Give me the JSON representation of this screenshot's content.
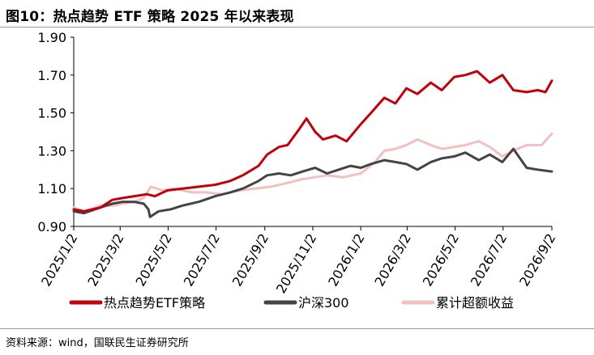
{
  "header": {
    "title": "图10：热点趋势 ETF 策略 2025 年以来表现"
  },
  "footer": {
    "source": "资料来源：wind，国联民生证券研究所"
  },
  "chart_data": {
    "type": "line",
    "title": "图10：热点趋势 ETF 策略 2025 年以来表现",
    "xlabel": "",
    "ylabel": "",
    "ylim": [
      0.9,
      1.9
    ],
    "yticks": [
      "0.90",
      "1.10",
      "1.30",
      "1.50",
      "1.70",
      "1.90"
    ],
    "xticks": [
      "2025/1/2",
      "2025/3/2",
      "2025/5/2",
      "2025/7/2",
      "2025/9/2",
      "2025/11/2",
      "2026/1/2",
      "2026/3/2",
      "2026/5/2",
      "2026/7/2",
      "2026/9/2"
    ],
    "xlim": [
      "2025/1/2",
      "2026/9/2"
    ],
    "grid": false,
    "legend_position": "bottom",
    "series": [
      {
        "name": "热点趋势ETF策略",
        "color": "#c0000a",
        "x": [
          "2025/1/2",
          "2025/1/15",
          "2025/2/5",
          "2025/2/20",
          "2025/3/5",
          "2025/3/20",
          "2025/4/5",
          "2025/4/15",
          "2025/5/1",
          "2025/5/20",
          "2025/6/10",
          "2025/7/1",
          "2025/7/20",
          "2025/8/5",
          "2025/8/25",
          "2025/9/5",
          "2025/9/20",
          "2025/10/1",
          "2025/10/15",
          "2025/10/25",
          "2025/11/5",
          "2025/11/15",
          "2025/12/1",
          "2025/12/15",
          "2026/1/2",
          "2026/1/15",
          "2026/2/1",
          "2026/2/15",
          "2026/3/1",
          "2026/3/15",
          "2026/4/1",
          "2026/4/15",
          "2026/5/1",
          "2026/5/15",
          "2026/5/30",
          "2026/6/15",
          "2026/7/1",
          "2026/7/15",
          "2026/8/1",
          "2026/8/15",
          "2026/8/25",
          "2026/9/2"
        ],
        "values": [
          0.99,
          0.98,
          1.0,
          1.04,
          1.05,
          1.06,
          1.07,
          1.06,
          1.09,
          1.1,
          1.11,
          1.12,
          1.14,
          1.17,
          1.22,
          1.28,
          1.32,
          1.33,
          1.41,
          1.47,
          1.4,
          1.36,
          1.38,
          1.35,
          1.44,
          1.5,
          1.58,
          1.55,
          1.63,
          1.6,
          1.66,
          1.62,
          1.69,
          1.7,
          1.72,
          1.66,
          1.7,
          1.62,
          1.61,
          1.62,
          1.61,
          1.67
        ]
      },
      {
        "name": "沪深300",
        "color": "#444444",
        "x": [
          "2025/1/2",
          "2025/1/15",
          "2025/2/5",
          "2025/2/20",
          "2025/3/5",
          "2025/3/20",
          "2025/4/1",
          "2025/4/7",
          "2025/4/9",
          "2025/4/20",
          "2025/5/5",
          "2025/5/20",
          "2025/6/10",
          "2025/7/1",
          "2025/7/20",
          "2025/8/5",
          "2025/8/25",
          "2025/9/5",
          "2025/9/20",
          "2025/10/5",
          "2025/10/20",
          "2025/11/5",
          "2025/11/20",
          "2025/12/5",
          "2025/12/20",
          "2026/1/2",
          "2026/1/15",
          "2026/2/1",
          "2026/2/15",
          "2026/3/1",
          "2026/3/15",
          "2026/4/1",
          "2026/4/15",
          "2026/5/1",
          "2026/5/15",
          "2026/6/1",
          "2026/6/15",
          "2026/7/1",
          "2026/7/15",
          "2026/8/1",
          "2026/8/15",
          "2026/9/2"
        ],
        "values": [
          0.98,
          0.97,
          1.0,
          1.02,
          1.03,
          1.03,
          1.02,
          0.99,
          0.95,
          0.98,
          0.99,
          1.01,
          1.03,
          1.06,
          1.08,
          1.1,
          1.14,
          1.17,
          1.18,
          1.17,
          1.19,
          1.21,
          1.18,
          1.2,
          1.22,
          1.21,
          1.23,
          1.25,
          1.24,
          1.23,
          1.2,
          1.24,
          1.26,
          1.27,
          1.29,
          1.25,
          1.28,
          1.24,
          1.31,
          1.21,
          1.2,
          1.19
        ]
      },
      {
        "name": "累计超额收益",
        "color": "#f2c0c0",
        "x": [
          "2025/1/2",
          "2025/1/15",
          "2025/2/5",
          "2025/2/20",
          "2025/3/5",
          "2025/3/20",
          "2025/4/1",
          "2025/4/10",
          "2025/4/25",
          "2025/5/10",
          "2025/6/1",
          "2025/6/20",
          "2025/7/10",
          "2025/8/1",
          "2025/8/20",
          "2025/9/10",
          "2025/10/1",
          "2025/10/20",
          "2025/11/5",
          "2025/11/20",
          "2025/12/10",
          "2026/1/2",
          "2026/1/20",
          "2026/2/1",
          "2026/2/15",
          "2026/3/1",
          "2026/3/15",
          "2026/4/1",
          "2026/4/15",
          "2026/5/1",
          "2026/5/15",
          "2026/6/1",
          "2026/6/15",
          "2026/7/1",
          "2026/7/15",
          "2026/8/1",
          "2026/8/20",
          "2026/9/2"
        ],
        "values": [
          1.0,
          0.98,
          1.01,
          1.01,
          1.02,
          1.03,
          1.05,
          1.11,
          1.09,
          1.1,
          1.08,
          1.08,
          1.07,
          1.09,
          1.1,
          1.11,
          1.13,
          1.15,
          1.16,
          1.17,
          1.16,
          1.18,
          1.24,
          1.3,
          1.31,
          1.33,
          1.36,
          1.33,
          1.31,
          1.32,
          1.33,
          1.35,
          1.32,
          1.27,
          1.3,
          1.33,
          1.33,
          1.39
        ]
      }
    ]
  }
}
